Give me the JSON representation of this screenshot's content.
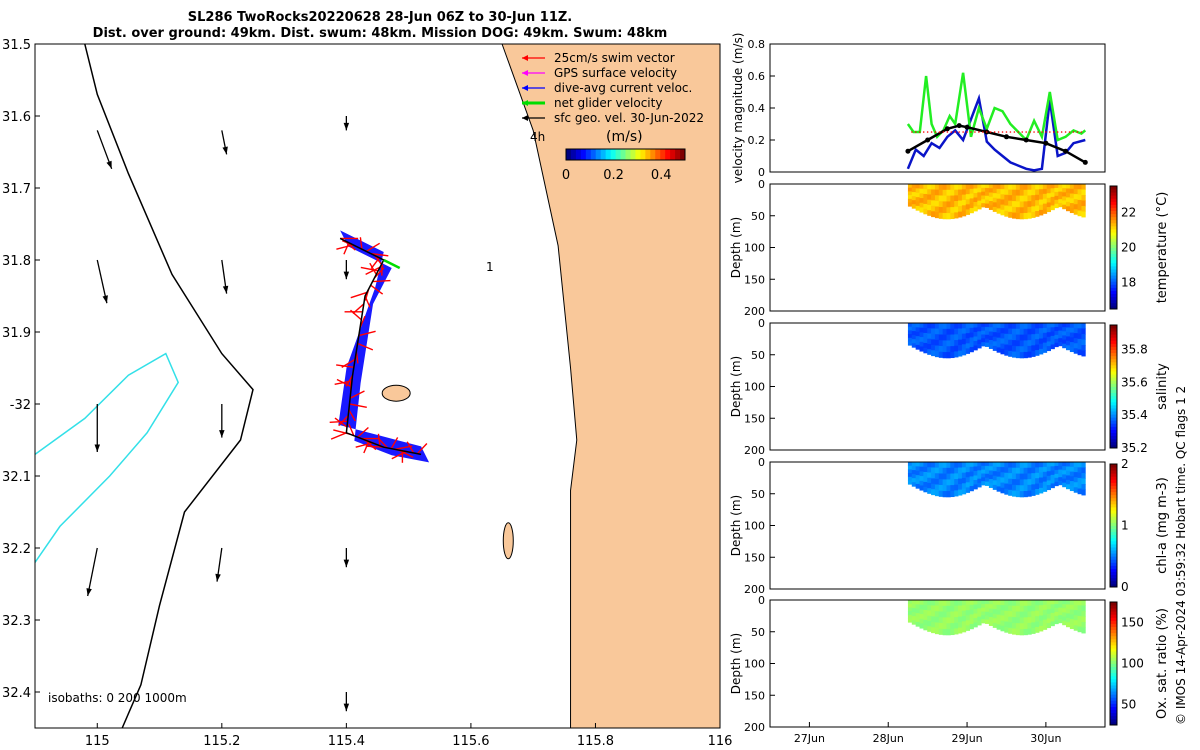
{
  "title_line1": "SL286 TwoRocks20220628 28-Jun 06Z to 30-Jun 11Z.",
  "title_line2": "Dist. over ground: 49km. Dist. swum: 48km. Mission DOG: 49km. Swum: 48km",
  "footer": "© IMOS 14-Apr-2024 03:59:32 Hobart time. QC flags 1  2",
  "colors": {
    "land": "#f9c89a",
    "isobath_0": "#000000",
    "isobath_200": "#000000",
    "isobath_1000": "#33e0e8",
    "swim": "#ff0000",
    "gps": "#ff00ff",
    "current": "#0000ff",
    "net": "#00dd00",
    "geo": "#000000",
    "vel_current_line": "#0a14c8",
    "vel_green_line": "#22ee22",
    "vel_black_line": "#000000"
  },
  "chart_data": [
    {
      "type": "map",
      "name": "glider-track-map",
      "xlim": [
        114.9,
        116.0
      ],
      "ylim": [
        -32.45,
        -31.5
      ],
      "x_ticks": [
        {
          "v": 115.0,
          "label": "115"
        },
        {
          "v": 115.2,
          "label": "115.2"
        },
        {
          "v": 115.4,
          "label": "115.4"
        },
        {
          "v": 115.6,
          "label": "115.6"
        },
        {
          "v": 115.8,
          "label": "115.8"
        },
        {
          "v": 116.0,
          "label": "116"
        }
      ],
      "y_ticks": [
        {
          "v": -31.5,
          "label": "31.5"
        },
        {
          "v": -31.6,
          "label": "31.6"
        },
        {
          "v": -31.7,
          "label": "31.7"
        },
        {
          "v": -31.8,
          "label": "31.8"
        },
        {
          "v": -31.9,
          "label": "31.9"
        },
        {
          "v": -32.0,
          "label": "-32"
        },
        {
          "v": -32.1,
          "label": "32.1"
        },
        {
          "v": -32.2,
          "label": "32.2"
        },
        {
          "v": -32.3,
          "label": "32.3"
        },
        {
          "v": -32.4,
          "label": "32.4"
        }
      ],
      "legend": [
        {
          "label": "25cm/s swim vector",
          "color": "#ff0000"
        },
        {
          "label": "GPS surface velocity",
          "color": "#ff00ff"
        },
        {
          "label": "dive-avg current veloc.",
          "color": "#0000ff"
        },
        {
          "label": "net glider velocity",
          "color": "#00dd00"
        },
        {
          "label": "sfc geo. vel. 30-Jun-2022",
          "color": "#000000"
        }
      ],
      "legend_time_tag": "4h",
      "colorbar": {
        "label": "(m/s)",
        "ticks": [
          "0",
          "0.2",
          "0.4"
        ],
        "range": [
          0,
          0.5
        ]
      },
      "isobath_label": "isobaths: 0   200  1000m",
      "point_label": "1",
      "coastline": [
        [
          115.65,
          -31.5
        ],
        [
          115.7,
          -31.62
        ],
        [
          115.74,
          -31.78
        ],
        [
          115.76,
          -31.95
        ],
        [
          115.77,
          -32.05
        ],
        [
          115.76,
          -32.12
        ],
        [
          115.76,
          -32.3
        ],
        [
          115.76,
          -32.45
        ]
      ],
      "isobath_200m": [
        [
          114.98,
          -31.5
        ],
        [
          115.0,
          -31.57
        ],
        [
          115.05,
          -31.68
        ],
        [
          115.12,
          -31.82
        ],
        [
          115.2,
          -31.93
        ],
        [
          115.25,
          -31.98
        ],
        [
          115.23,
          -32.05
        ],
        [
          115.14,
          -32.15
        ],
        [
          115.1,
          -32.28
        ],
        [
          115.07,
          -32.39
        ],
        [
          115.04,
          -32.45
        ]
      ],
      "isobath_1000m": [
        [
          114.9,
          -32.07
        ],
        [
          114.98,
          -32.02
        ],
        [
          115.05,
          -31.96
        ],
        [
          115.11,
          -31.93
        ],
        [
          115.13,
          -31.97
        ],
        [
          115.08,
          -32.04
        ],
        [
          115.02,
          -32.1
        ],
        [
          114.94,
          -32.17
        ],
        [
          114.9,
          -32.22
        ]
      ],
      "glider_track": [
        [
          115.39,
          -31.77
        ],
        [
          115.46,
          -31.8
        ],
        [
          115.43,
          -31.85
        ],
        [
          115.41,
          -31.96
        ],
        [
          115.4,
          -32.04
        ],
        [
          115.46,
          -32.06
        ],
        [
          115.52,
          -32.07
        ]
      ],
      "geo_vectors": [
        {
          "x": 115.0,
          "y": -31.62,
          "u": 0.03,
          "v": -0.08
        },
        {
          "x": 115.2,
          "y": -31.62,
          "u": 0.01,
          "v": -0.05
        },
        {
          "x": 115.4,
          "y": -31.6,
          "u": 0.0,
          "v": -0.03
        },
        {
          "x": 115.0,
          "y": -31.8,
          "u": 0.02,
          "v": -0.09
        },
        {
          "x": 115.2,
          "y": -31.8,
          "u": 0.01,
          "v": -0.07
        },
        {
          "x": 115.4,
          "y": -31.8,
          "u": 0.0,
          "v": -0.04
        },
        {
          "x": 115.0,
          "y": -32.0,
          "u": 0.0,
          "v": -0.1
        },
        {
          "x": 115.2,
          "y": -32.0,
          "u": 0.0,
          "v": -0.07
        },
        {
          "x": 115.0,
          "y": -32.2,
          "u": -0.02,
          "v": -0.1
        },
        {
          "x": 115.2,
          "y": -32.2,
          "u": -0.01,
          "v": -0.07
        },
        {
          "x": 115.4,
          "y": -32.2,
          "u": 0.0,
          "v": -0.04
        },
        {
          "x": 115.4,
          "y": -32.4,
          "u": 0.0,
          "v": -0.04
        }
      ]
    },
    {
      "type": "line",
      "name": "velocity-magnitude",
      "ylabel": "velocity magnitude (m/s)",
      "ylim": [
        0,
        0.8
      ],
      "y_ticks": [
        0,
        0.2,
        0.4,
        0.6,
        0.8
      ],
      "x_range_days": [
        26.5,
        30.75
      ],
      "series": [
        {
          "name": "dive-avg current",
          "x": [
            28.25,
            28.35,
            28.45,
            28.55,
            28.65,
            28.75,
            28.85,
            28.95,
            29.05,
            29.15,
            29.25,
            29.35,
            29.45,
            29.55,
            29.65,
            29.75,
            29.85,
            29.95,
            30.05,
            30.15,
            30.25,
            30.35,
            30.5
          ],
          "values": [
            0.02,
            0.14,
            0.1,
            0.18,
            0.15,
            0.22,
            0.26,
            0.2,
            0.33,
            0.46,
            0.19,
            0.14,
            0.1,
            0.06,
            0.04,
            0.02,
            0.01,
            0.02,
            0.45,
            0.1,
            0.12,
            0.18,
            0.2
          ]
        },
        {
          "name": "net glider velocity",
          "x": [
            28.25,
            28.32,
            28.4,
            28.48,
            28.55,
            28.62,
            28.7,
            28.78,
            28.85,
            28.95,
            29.05,
            29.15,
            29.25,
            29.35,
            29.45,
            29.55,
            29.65,
            29.75,
            29.85,
            29.95,
            30.05,
            30.15,
            30.25,
            30.35,
            30.45,
            30.5
          ],
          "values": [
            0.3,
            0.25,
            0.25,
            0.6,
            0.3,
            0.22,
            0.26,
            0.35,
            0.3,
            0.62,
            0.22,
            0.4,
            0.27,
            0.4,
            0.38,
            0.3,
            0.25,
            0.2,
            0.32,
            0.22,
            0.5,
            0.2,
            0.22,
            0.26,
            0.24,
            0.26
          ]
        },
        {
          "name": "geostrophic",
          "x": [
            28.25,
            28.5,
            28.75,
            28.9,
            29.0,
            29.25,
            29.5,
            29.75,
            30.0,
            30.25,
            30.5
          ],
          "values": [
            0.13,
            0.2,
            0.27,
            0.29,
            0.28,
            0.25,
            0.22,
            0.2,
            0.18,
            0.13,
            0.06
          ]
        }
      ]
    },
    {
      "type": "heatmap",
      "name": "temperature-section",
      "ylabel": "Depth (m)",
      "colorbar_label": "temperature (°C)",
      "y_ticks": [
        0,
        50,
        100,
        150,
        200
      ],
      "ylim": [
        0,
        200
      ],
      "colorbar_ticks": [
        "18",
        "20",
        "22"
      ],
      "color_range": [
        16.5,
        23.5
      ],
      "x_range_days": [
        28.25,
        30.5
      ],
      "max_depth_m": [
        35,
        55
      ],
      "mean_value": 22.0
    },
    {
      "type": "heatmap",
      "name": "salinity-section",
      "ylabel": "Depth (m)",
      "colorbar_label": "salinity",
      "y_ticks": [
        0,
        50,
        100,
        150,
        200
      ],
      "ylim": [
        0,
        200
      ],
      "colorbar_ticks": [
        "35.2",
        "35.4",
        "35.6",
        "35.8"
      ],
      "color_range": [
        35.2,
        35.95
      ],
      "x_range_days": [
        28.25,
        30.5
      ],
      "max_depth_m": [
        35,
        55
      ],
      "mean_value": 35.28
    },
    {
      "type": "heatmap",
      "name": "chla-section",
      "ylabel": "Depth (m)",
      "colorbar_label": "chl-a (mg m-3)",
      "y_ticks": [
        0,
        50,
        100,
        150,
        200
      ],
      "ylim": [
        0,
        200
      ],
      "colorbar_ticks": [
        "0",
        "1",
        "2"
      ],
      "color_range": [
        0,
        2
      ],
      "x_range_days": [
        28.25,
        30.5
      ],
      "max_depth_m": [
        35,
        55
      ],
      "mean_value": 0.4
    },
    {
      "type": "heatmap",
      "name": "oxygen-section",
      "ylabel": "Depth (m)",
      "colorbar_label": "Ox. sat. ratio (%)",
      "y_ticks": [
        0,
        50,
        100,
        150,
        200
      ],
      "ylim": [
        0,
        200
      ],
      "colorbar_ticks": [
        "50",
        "100",
        "150"
      ],
      "color_range": [
        25,
        175
      ],
      "x_range_days": [
        28.25,
        30.5
      ],
      "max_depth_m": [
        35,
        55
      ],
      "mean_value": 100,
      "x_ticks": [
        {
          "v": 27,
          "label": "27Jun"
        },
        {
          "v": 28,
          "label": "28Jun"
        },
        {
          "v": 29,
          "label": "29Jun"
        },
        {
          "v": 30,
          "label": "30Jun"
        }
      ]
    }
  ]
}
